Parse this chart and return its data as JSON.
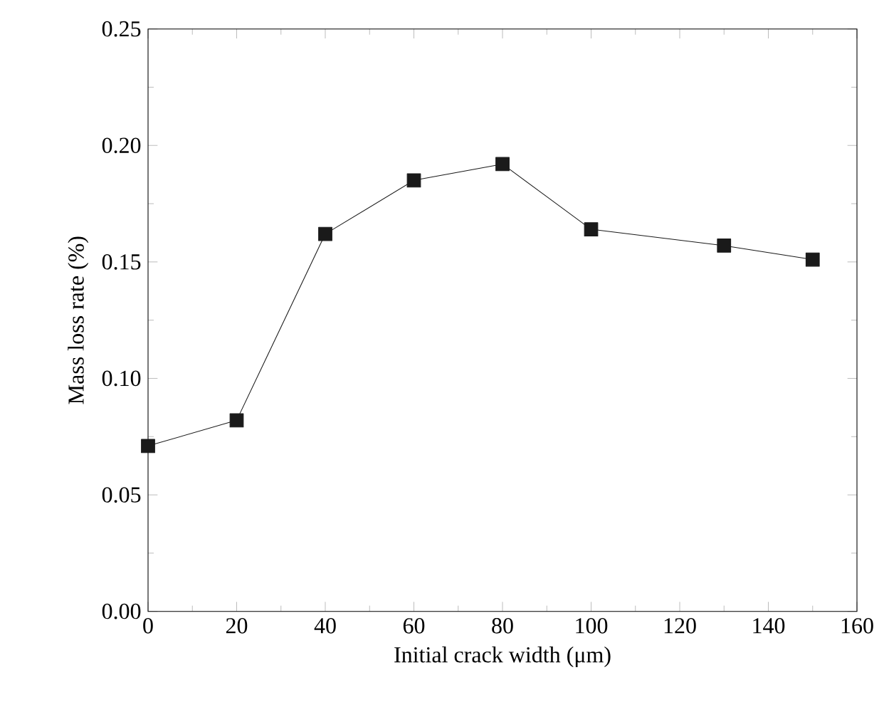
{
  "chart_data": {
    "type": "line",
    "xlabel": "Initial crack width (μm)",
    "ylabel": "Mass loss rate (%)",
    "x": [
      0,
      20,
      40,
      60,
      80,
      100,
      130,
      150
    ],
    "series": [
      {
        "color": "#1a1a1a",
        "values": [
          0.071,
          0.082,
          0.162,
          0.185,
          0.192,
          0.164,
          0.157,
          0.151
        ]
      }
    ],
    "xlim": [
      0,
      160
    ],
    "xticks": [
      0,
      20,
      40,
      60,
      80,
      100,
      120,
      140,
      160
    ],
    "ylim": [
      0,
      0.25
    ],
    "yticks": [
      {
        "value": 0,
        "label": "0.00"
      },
      {
        "value": 0.05,
        "label": "0.05"
      },
      {
        "value": 0.1,
        "label": "0.10"
      },
      {
        "value": 0.15,
        "label": "0.15"
      },
      {
        "value": 0.2,
        "label": "0.20"
      },
      {
        "value": 0.25,
        "label": "0.25"
      }
    ],
    "marker": "square",
    "line_style": "solid",
    "grid": false,
    "legend": false
  }
}
